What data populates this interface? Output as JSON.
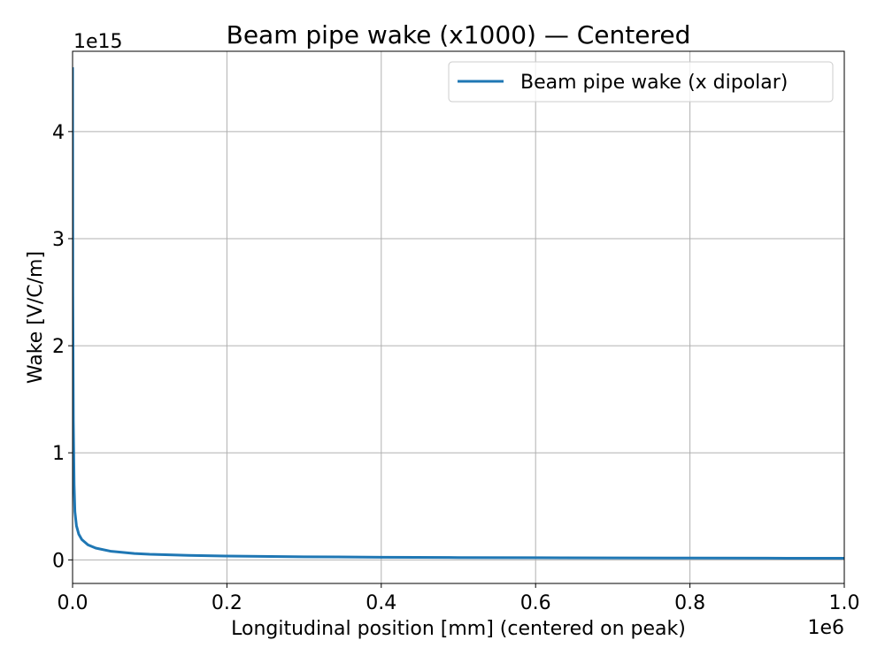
{
  "chart_data": {
    "type": "line",
    "title": "Beam pipe wake (x1000) — Centered",
    "xlabel": "Longitudinal position [mm] (centered on peak)",
    "ylabel": "Wake [V/C/m]",
    "x_offset_text": "1e6",
    "y_offset_text": "1e15",
    "x_scale": 1000000,
    "y_scale": 1000000000000000,
    "xlim": [
      0,
      1000000
    ],
    "ylim": [
      -220000000000000,
      4750000000000000
    ],
    "x_ticks": [
      0,
      200000,
      400000,
      600000,
      800000,
      1000000
    ],
    "x_tick_labels": [
      "0.0",
      "0.2",
      "0.4",
      "0.6",
      "0.8",
      "1.0"
    ],
    "y_ticks": [
      0,
      1000000000000000,
      2000000000000000,
      3000000000000000,
      4000000000000000
    ],
    "y_tick_labels": [
      "0",
      "1",
      "2",
      "3",
      "4"
    ],
    "grid": true,
    "legend_position": "top-right",
    "series": [
      {
        "name": "Beam pipe wake (x dipolar)",
        "color": "#1f77b4",
        "x": [
          0,
          300,
          1000,
          2000,
          3000,
          5000,
          8000,
          12000,
          20000,
          30000,
          50000,
          80000,
          100000,
          150000,
          200000,
          300000,
          400000,
          500000,
          600000,
          700000,
          800000,
          900000,
          1000000
        ],
        "y": [
          4600000000000000,
          2500000000000000,
          1300000000000000,
          700000000000000,
          450000000000000,
          320000000000000,
          240000000000000,
          190000000000000,
          140000000000000,
          110000000000000,
          80000000000000,
          60000000000000,
          52000000000000,
          42000000000000,
          36000000000000,
          29000000000000,
          25000000000000,
          22000000000000,
          20000000000000,
          18500000000000,
          17000000000000,
          16000000000000,
          15000000000000
        ]
      }
    ]
  }
}
